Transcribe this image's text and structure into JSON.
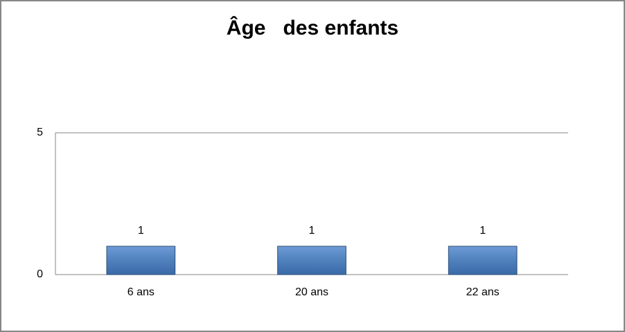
{
  "chart_data": {
    "type": "bar",
    "title": "Âge   des enfants",
    "categories": [
      "6 ans",
      "20 ans",
      "22 ans"
    ],
    "values": [
      1,
      1,
      1
    ],
    "color": "#4f81bd",
    "ylim": [
      0,
      5
    ],
    "yticks": [
      0,
      5
    ],
    "grid": true
  }
}
